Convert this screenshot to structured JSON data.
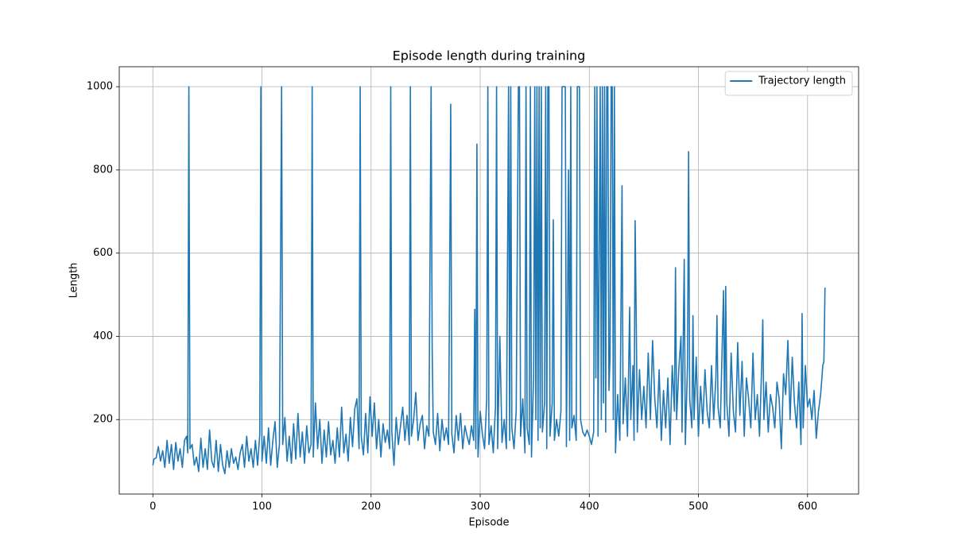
{
  "chart_data": {
    "type": "line",
    "title": "Episode length during training",
    "x_label": "Episode",
    "y_label": "Length",
    "x": [
      0,
      1,
      3,
      5,
      7,
      9,
      11,
      13,
      15,
      17,
      19,
      21,
      23,
      25,
      27,
      29,
      31,
      32,
      33,
      34,
      36,
      38,
      40,
      42,
      44,
      46,
      48,
      50,
      52,
      54,
      56,
      58,
      60,
      62,
      64,
      66,
      68,
      70,
      72,
      74,
      76,
      78,
      80,
      82,
      84,
      86,
      88,
      90,
      92,
      94,
      96,
      98,
      99,
      100,
      102,
      104,
      106,
      108,
      110,
      112,
      114,
      116,
      118,
      119,
      121,
      123,
      125,
      127,
      129,
      131,
      133,
      135,
      137,
      139,
      141,
      143,
      145,
      146,
      147,
      149,
      151,
      153,
      155,
      157,
      159,
      161,
      163,
      165,
      167,
      169,
      171,
      173,
      175,
      177,
      179,
      181,
      183,
      185,
      187,
      189,
      190,
      191,
      193,
      195,
      197,
      199,
      201,
      203,
      205,
      207,
      209,
      211,
      213,
      215,
      217,
      218,
      219,
      221,
      223,
      225,
      227,
      229,
      231,
      233,
      235,
      236,
      237,
      239,
      241,
      243,
      245,
      247,
      249,
      251,
      253,
      255,
      256,
      257,
      259,
      261,
      263,
      265,
      267,
      269,
      271,
      273,
      274,
      276,
      278,
      280,
      282,
      284,
      286,
      288,
      290,
      292,
      294,
      295,
      296,
      297,
      298,
      300,
      302,
      304,
      306,
      307,
      308,
      310,
      312,
      314,
      315,
      316,
      318,
      320,
      322,
      324,
      326,
      327,
      328,
      329,
      331,
      333,
      335,
      336,
      337,
      339,
      341,
      342,
      343,
      345,
      346,
      347,
      349,
      350,
      351,
      352,
      353,
      354,
      355,
      356,
      357,
      359,
      360,
      361,
      362,
      363,
      364,
      366,
      367,
      368,
      370,
      372,
      374,
      375,
      376,
      377,
      378,
      379,
      381,
      382,
      383,
      384,
      386,
      388,
      389,
      390,
      391,
      392,
      394,
      396,
      398,
      400,
      402,
      404,
      405,
      406,
      407,
      408,
      410,
      411,
      412,
      413,
      414,
      415,
      416,
      417,
      418,
      419,
      420,
      421,
      422,
      423,
      424,
      426,
      428,
      430,
      431,
      433,
      435,
      437,
      438,
      440,
      441,
      442,
      443,
      444,
      446,
      448,
      450,
      452,
      454,
      456,
      458,
      460,
      462,
      464,
      466,
      468,
      470,
      472,
      474,
      476,
      478,
      479,
      480,
      482,
      484,
      485,
      487,
      488,
      490,
      491,
      492,
      494,
      495,
      496,
      498,
      500,
      502,
      504,
      506,
      508,
      510,
      512,
      514,
      516,
      517,
      518,
      520,
      522,
      523,
      524,
      525,
      526,
      528,
      530,
      532,
      534,
      536,
      538,
      540,
      542,
      544,
      546,
      548,
      550,
      552,
      554,
      556,
      558,
      559,
      560,
      562,
      564,
      566,
      568,
      570,
      572,
      574,
      576,
      578,
      580,
      582,
      584,
      586,
      588,
      590,
      592,
      594,
      595,
      596,
      598,
      600,
      602,
      604,
      606,
      608,
      610,
      612,
      614,
      615,
      616
    ],
    "series": [
      {
        "name": "Trajectory length",
        "color": "#1f77b4",
        "values": [
          90,
          105,
          108,
          135,
          100,
          125,
          85,
          150,
          95,
          140,
          80,
          145,
          100,
          130,
          85,
          150,
          160,
          120,
          1000,
          130,
          140,
          90,
          110,
          75,
          155,
          85,
          130,
          80,
          175,
          100,
          85,
          150,
          75,
          140,
          90,
          70,
          125,
          85,
          130,
          95,
          110,
          80,
          120,
          140,
          85,
          160,
          100,
          130,
          85,
          150,
          90,
          165,
          1000,
          100,
          160,
          95,
          180,
          90,
          150,
          195,
          85,
          140,
          1000,
          140,
          205,
          100,
          160,
          95,
          190,
          105,
          215,
          110,
          170,
          95,
          185,
          120,
          140,
          1000,
          110,
          240,
          130,
          200,
          95,
          175,
          110,
          195,
          115,
          150,
          95,
          180,
          110,
          230,
          120,
          165,
          100,
          205,
          135,
          225,
          250,
          130,
          1000,
          160,
          115,
          215,
          120,
          255,
          160,
          240,
          130,
          200,
          110,
          190,
          145,
          175,
          130,
          1000,
          170,
          90,
          205,
          140,
          185,
          230,
          150,
          210,
          140,
          1000,
          160,
          200,
          265,
          150,
          190,
          210,
          130,
          185,
          160,
          1000,
          370,
          170,
          140,
          215,
          125,
          200,
          150,
          180,
          140,
          958,
          165,
          120,
          210,
          150,
          215,
          130,
          185,
          160,
          140,
          185,
          150,
          465,
          130,
          862,
          110,
          220,
          165,
          130,
          250,
          1000,
          140,
          185,
          120,
          230,
          1000,
          130,
          400,
          145,
          200,
          130,
          1000,
          150,
          1000,
          180,
          130,
          220,
          1000,
          1000,
          160,
          250,
          120,
          1000,
          180,
          140,
          1000,
          110,
          310,
          1000,
          200,
          1000,
          150,
          1000,
          180,
          1000,
          170,
          240,
          1000,
          130,
          1000,
          1000,
          160,
          240,
          680,
          150,
          200,
          160,
          220,
          1000,
          1000,
          1000,
          1000,
          135,
          800,
          150,
          1000,
          180,
          210,
          150,
          1000,
          1000,
          1000,
          200,
          170,
          160,
          175,
          160,
          140,
          170,
          1000,
          300,
          1000,
          160,
          1000,
          200,
          1000,
          240,
          1000,
          170,
          1000,
          1000,
          270,
          350,
          1000,
          1000,
          200,
          1000,
          120,
          260,
          150,
          762,
          190,
          300,
          160,
          470,
          200,
          330,
          150,
          678,
          440,
          170,
          320,
          200,
          280,
          180,
          360,
          200,
          390,
          250,
          180,
          320,
          150,
          270,
          180,
          300,
          140,
          330,
          220,
          565,
          200,
          320,
          400,
          170,
          585,
          140,
          330,
          844,
          250,
          180,
          450,
          200,
          350,
          160,
          280,
          190,
          320,
          220,
          180,
          330,
          200,
          300,
          450,
          230,
          180,
          400,
          510,
          200,
          520,
          240,
          160,
          360,
          220,
          170,
          385,
          210,
          340,
          160,
          300,
          250,
          180,
          360,
          200,
          260,
          160,
          330,
          440,
          200,
          290,
          170,
          260,
          230,
          180,
          290,
          250,
          130,
          310,
          260,
          390,
          200,
          350,
          240,
          180,
          290,
          140,
          455,
          180,
          330,
          230,
          250,
          200,
          270,
          155,
          220,
          260,
          330,
          340,
          517
        ]
      }
    ],
    "xlim": [
      -30.8,
      646.8
    ],
    "ylim": [
      21,
      1048
    ],
    "xticks": [
      0,
      100,
      200,
      300,
      400,
      500,
      600
    ],
    "yticks": [
      200,
      400,
      600,
      800,
      1000
    ],
    "grid": true,
    "legend": "upper right"
  }
}
